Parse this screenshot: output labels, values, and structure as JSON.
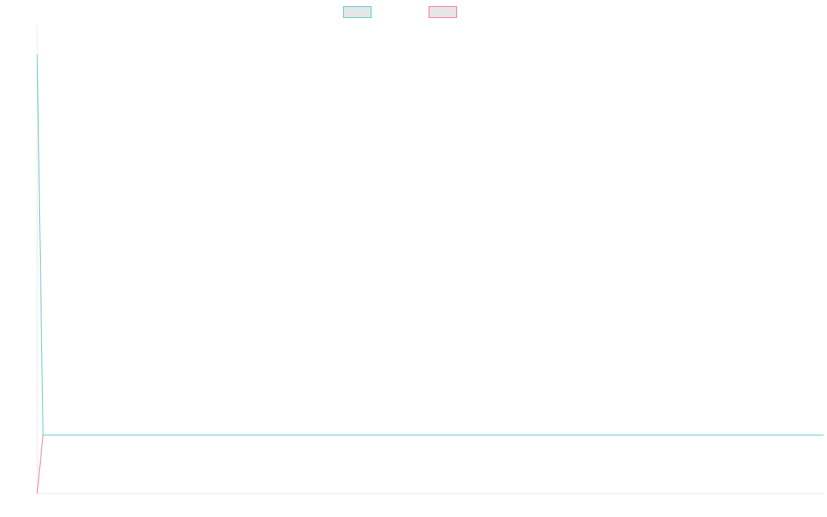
{
  "chart_data": {
    "type": "line",
    "title": "",
    "xlabel": "",
    "ylabel": "",
    "x": [
      0,
      1,
      2
    ],
    "xlim": [
      0,
      136
    ],
    "ylim": [
      -1,
      7
    ],
    "grid": false,
    "legend_position": "top-center",
    "series": [
      {
        "name": "",
        "values": [
          6.5,
          0,
          0
        ],
        "color": "#4bc0c0",
        "fill": "#e6e6e6"
      },
      {
        "name": "",
        "values": [
          -1,
          0,
          null
        ],
        "color": "#ff6384",
        "fill": "#e6e6e6"
      }
    ],
    "axis_color": "#e6e6e6"
  }
}
